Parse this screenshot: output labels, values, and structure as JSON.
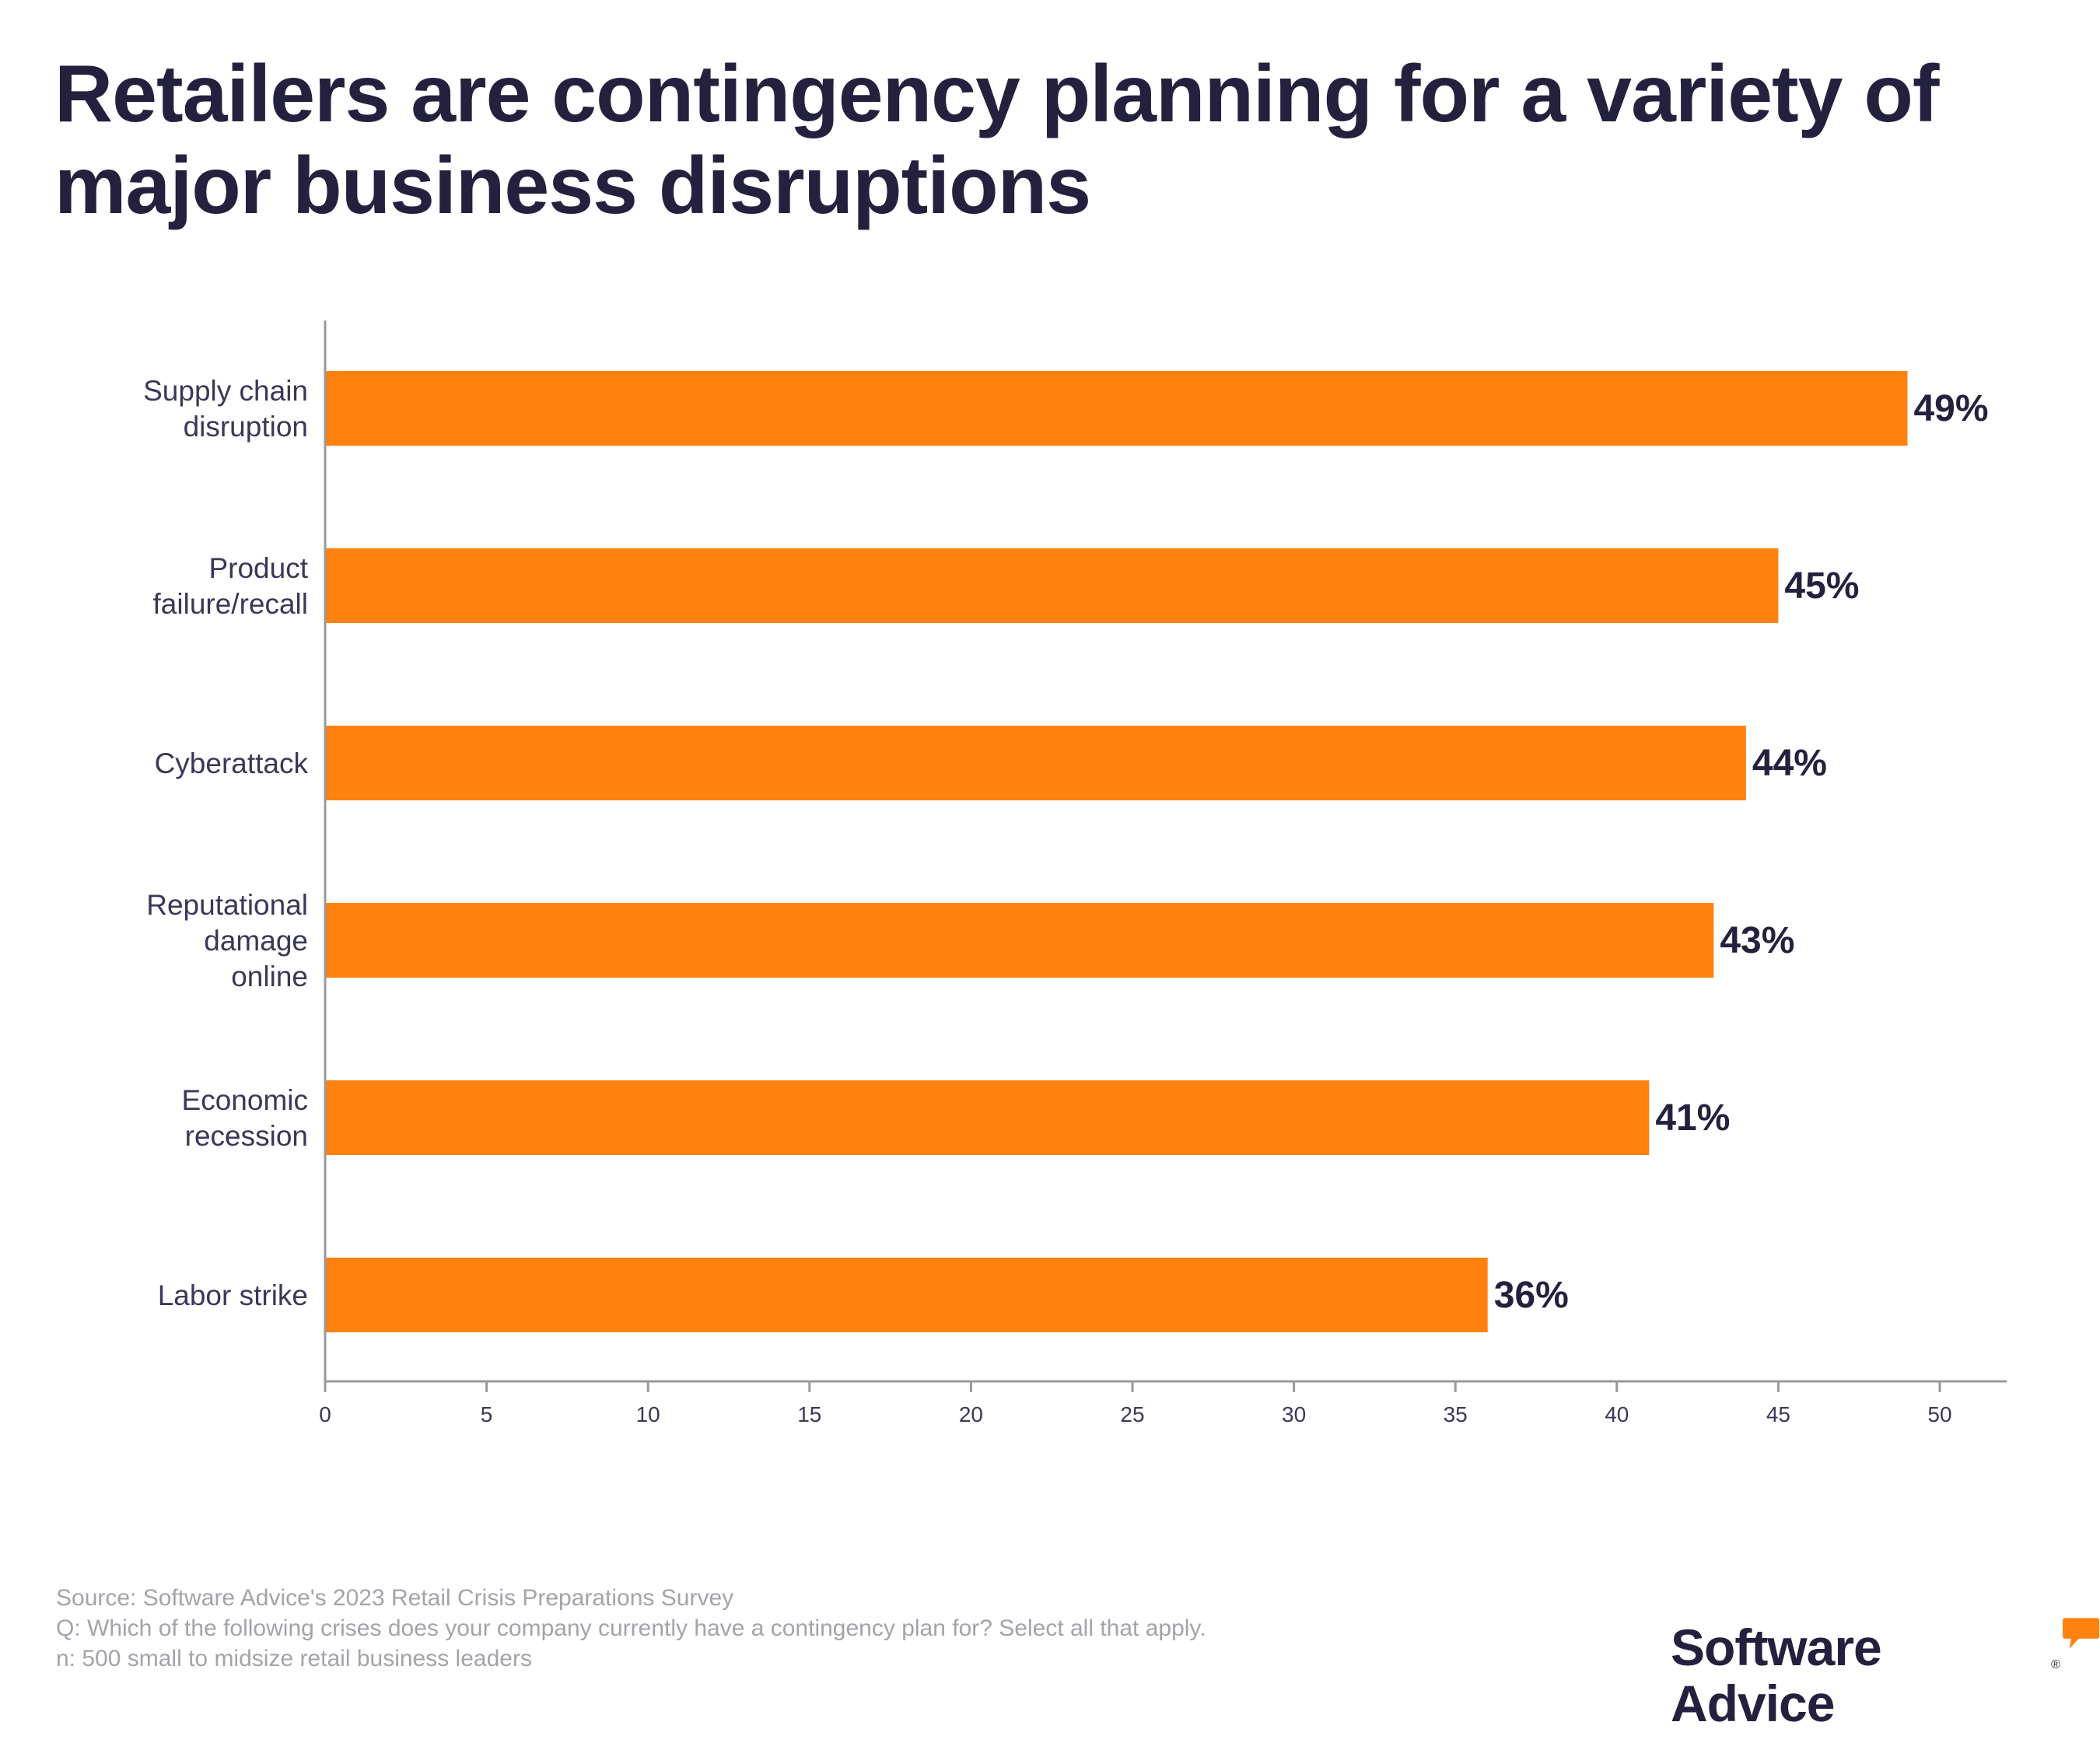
{
  "title": "Retailers are contingency planning for a variety of major business disruptions",
  "chart_data": {
    "type": "bar",
    "orientation": "horizontal",
    "categories": [
      [
        "Supply chain",
        "disruption"
      ],
      [
        "Product",
        "failure/recall"
      ],
      [
        "Cyberattack"
      ],
      [
        "Reputational",
        "damage",
        "online"
      ],
      [
        "Economic",
        "recession"
      ],
      [
        "Labor strike"
      ]
    ],
    "values": [
      49,
      45,
      44,
      43,
      41,
      36
    ],
    "value_labels": [
      "49%",
      "45%",
      "44%",
      "43%",
      "41%",
      "36%"
    ],
    "xlim": [
      0,
      52
    ],
    "xticks": [
      0,
      5,
      10,
      15,
      20,
      25,
      30,
      35,
      40,
      45,
      50
    ],
    "xlabel": "",
    "ylabel": "",
    "grid": false,
    "colors": {
      "bar": "#ff8210",
      "axis": "#9a9a9a",
      "label": "#3a3858",
      "value": "#24213f"
    }
  },
  "footnote": {
    "source": "Source: Software Advice's 2023 Retail Crisis Preparations Survey",
    "question": "Q: Which of the following crises does your company currently have a contingency plan for? Select all that apply.",
    "sample": "n: 500 small to midsize retail business leaders"
  },
  "brand": {
    "name": "Software Advice",
    "registered": "®",
    "icon": "speech-bubble-icon",
    "accent": "#ff8210"
  }
}
